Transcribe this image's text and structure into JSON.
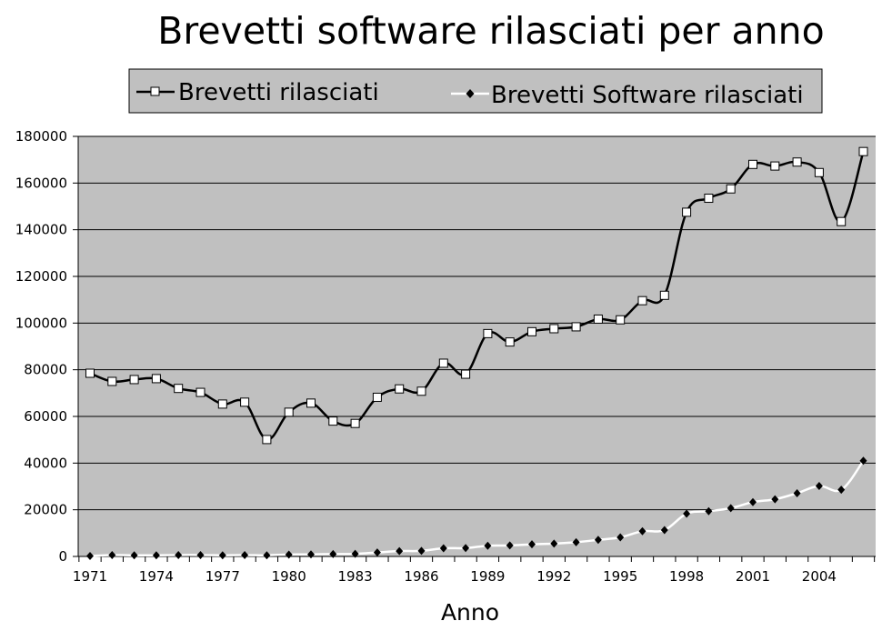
{
  "chart_data": {
    "type": "line",
    "title": "Brevetti software rilasciati per anno",
    "xlabel": "Anno",
    "ylabel": "",
    "x": [
      1971,
      1972,
      1973,
      1974,
      1975,
      1976,
      1977,
      1978,
      1979,
      1980,
      1981,
      1982,
      1983,
      1984,
      1985,
      1986,
      1987,
      1988,
      1989,
      1990,
      1991,
      1992,
      1993,
      1994,
      1995,
      1996,
      1997,
      1998,
      1999,
      2000,
      2001,
      2002,
      2003,
      2004,
      2005,
      2006
    ],
    "xticks": [
      "1971",
      "1974",
      "1977",
      "1980",
      "1983",
      "1986",
      "1989",
      "1992",
      "1995",
      "1998",
      "2001",
      "2004"
    ],
    "ylim": [
      0,
      180000
    ],
    "yticks": [
      "0",
      "20000",
      "40000",
      "60000",
      "80000",
      "100000",
      "120000",
      "140000",
      "160000",
      "180000"
    ],
    "grid": true,
    "legend_position": "top",
    "plot_background": "#c0c0c0",
    "series": [
      {
        "name": "Brevetti rilasciati",
        "color": "#000000",
        "marker": "square",
        "values": [
          78500,
          75000,
          75800,
          76200,
          72000,
          70300,
          65300,
          66100,
          50100,
          61800,
          65700,
          58000,
          57000,
          68200,
          71800,
          70800,
          82800,
          78100,
          95500,
          91900,
          96300,
          97600,
          98400,
          101700,
          101400,
          109600,
          111900,
          147500,
          153500,
          157500,
          168000,
          167300,
          169000,
          164500,
          143500,
          173500
        ]
      },
      {
        "name": "Brevetti Software rilasciati",
        "color": "#ffffff",
        "marker": "diamond",
        "values": [
          200,
          600,
          500,
          500,
          600,
          600,
          500,
          600,
          500,
          800,
          900,
          1000,
          1100,
          1700,
          2300,
          2400,
          3500,
          3600,
          4600,
          4700,
          5200,
          5500,
          6100,
          7100,
          8200,
          10800,
          11300,
          18300,
          19400,
          20700,
          23300,
          24500,
          27100,
          30200,
          28600,
          41000
        ]
      }
    ]
  }
}
